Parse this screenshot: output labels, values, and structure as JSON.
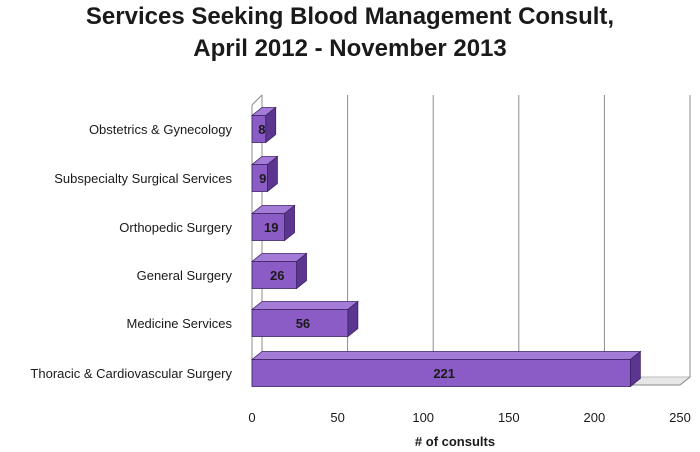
{
  "chart_data": {
    "type": "bar",
    "orientation": "horizontal",
    "title_line1": "Services Seeking Blood Management Consult,",
    "title_line2": "April 2012 - November 2013",
    "xlabel": "# of consults",
    "ylabel": "",
    "categories": [
      "Obstetrics & Gynecology",
      "Subspecialty Surgical Services",
      "Orthopedic Surgery",
      "General Surgery",
      "Medicine Services",
      "Thoracic & Cardiovascular Surgery"
    ],
    "values": [
      8,
      9,
      19,
      26,
      56,
      221
    ],
    "data_labels": [
      "8",
      "9",
      "19",
      "26",
      "56",
      "221"
    ],
    "xlim": [
      0,
      250
    ],
    "xticks": [
      "0",
      "50",
      "100",
      "150",
      "200",
      "250"
    ],
    "grid": true,
    "three_d": true,
    "colors": {
      "bar_front": "#8b5cc6",
      "bar_top": "#a47bd6",
      "bar_side": "#5b3590",
      "bar_stroke": "#3e2466",
      "grid": "#8c8c8c",
      "floor": "#bdbdbd"
    }
  }
}
